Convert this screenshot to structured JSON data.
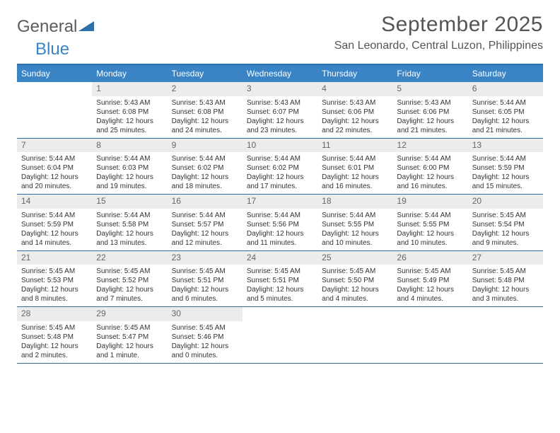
{
  "logo": {
    "word1": "General",
    "word2": "Blue"
  },
  "title": "September 2025",
  "location": "San Leonardo, Central Luzon, Philippines",
  "colors": {
    "header_bg": "#3a84c6",
    "header_border": "#2f6fa7",
    "daynum_bg": "#ececec",
    "text": "#333333",
    "logo_gray": "#5c5c5c",
    "logo_blue": "#3a84c6"
  },
  "dayNames": [
    "Sunday",
    "Monday",
    "Tuesday",
    "Wednesday",
    "Thursday",
    "Friday",
    "Saturday"
  ],
  "weeks": [
    [
      null,
      {
        "n": "1",
        "sr": "Sunrise: 5:43 AM",
        "ss": "Sunset: 6:08 PM",
        "dl": "Daylight: 12 hours and 25 minutes."
      },
      {
        "n": "2",
        "sr": "Sunrise: 5:43 AM",
        "ss": "Sunset: 6:08 PM",
        "dl": "Daylight: 12 hours and 24 minutes."
      },
      {
        "n": "3",
        "sr": "Sunrise: 5:43 AM",
        "ss": "Sunset: 6:07 PM",
        "dl": "Daylight: 12 hours and 23 minutes."
      },
      {
        "n": "4",
        "sr": "Sunrise: 5:43 AM",
        "ss": "Sunset: 6:06 PM",
        "dl": "Daylight: 12 hours and 22 minutes."
      },
      {
        "n": "5",
        "sr": "Sunrise: 5:43 AM",
        "ss": "Sunset: 6:06 PM",
        "dl": "Daylight: 12 hours and 21 minutes."
      },
      {
        "n": "6",
        "sr": "Sunrise: 5:44 AM",
        "ss": "Sunset: 6:05 PM",
        "dl": "Daylight: 12 hours and 21 minutes."
      }
    ],
    [
      {
        "n": "7",
        "sr": "Sunrise: 5:44 AM",
        "ss": "Sunset: 6:04 PM",
        "dl": "Daylight: 12 hours and 20 minutes."
      },
      {
        "n": "8",
        "sr": "Sunrise: 5:44 AM",
        "ss": "Sunset: 6:03 PM",
        "dl": "Daylight: 12 hours and 19 minutes."
      },
      {
        "n": "9",
        "sr": "Sunrise: 5:44 AM",
        "ss": "Sunset: 6:02 PM",
        "dl": "Daylight: 12 hours and 18 minutes."
      },
      {
        "n": "10",
        "sr": "Sunrise: 5:44 AM",
        "ss": "Sunset: 6:02 PM",
        "dl": "Daylight: 12 hours and 17 minutes."
      },
      {
        "n": "11",
        "sr": "Sunrise: 5:44 AM",
        "ss": "Sunset: 6:01 PM",
        "dl": "Daylight: 12 hours and 16 minutes."
      },
      {
        "n": "12",
        "sr": "Sunrise: 5:44 AM",
        "ss": "Sunset: 6:00 PM",
        "dl": "Daylight: 12 hours and 16 minutes."
      },
      {
        "n": "13",
        "sr": "Sunrise: 5:44 AM",
        "ss": "Sunset: 5:59 PM",
        "dl": "Daylight: 12 hours and 15 minutes."
      }
    ],
    [
      {
        "n": "14",
        "sr": "Sunrise: 5:44 AM",
        "ss": "Sunset: 5:59 PM",
        "dl": "Daylight: 12 hours and 14 minutes."
      },
      {
        "n": "15",
        "sr": "Sunrise: 5:44 AM",
        "ss": "Sunset: 5:58 PM",
        "dl": "Daylight: 12 hours and 13 minutes."
      },
      {
        "n": "16",
        "sr": "Sunrise: 5:44 AM",
        "ss": "Sunset: 5:57 PM",
        "dl": "Daylight: 12 hours and 12 minutes."
      },
      {
        "n": "17",
        "sr": "Sunrise: 5:44 AM",
        "ss": "Sunset: 5:56 PM",
        "dl": "Daylight: 12 hours and 11 minutes."
      },
      {
        "n": "18",
        "sr": "Sunrise: 5:44 AM",
        "ss": "Sunset: 5:55 PM",
        "dl": "Daylight: 12 hours and 10 minutes."
      },
      {
        "n": "19",
        "sr": "Sunrise: 5:44 AM",
        "ss": "Sunset: 5:55 PM",
        "dl": "Daylight: 12 hours and 10 minutes."
      },
      {
        "n": "20",
        "sr": "Sunrise: 5:45 AM",
        "ss": "Sunset: 5:54 PM",
        "dl": "Daylight: 12 hours and 9 minutes."
      }
    ],
    [
      {
        "n": "21",
        "sr": "Sunrise: 5:45 AM",
        "ss": "Sunset: 5:53 PM",
        "dl": "Daylight: 12 hours and 8 minutes."
      },
      {
        "n": "22",
        "sr": "Sunrise: 5:45 AM",
        "ss": "Sunset: 5:52 PM",
        "dl": "Daylight: 12 hours and 7 minutes."
      },
      {
        "n": "23",
        "sr": "Sunrise: 5:45 AM",
        "ss": "Sunset: 5:51 PM",
        "dl": "Daylight: 12 hours and 6 minutes."
      },
      {
        "n": "24",
        "sr": "Sunrise: 5:45 AM",
        "ss": "Sunset: 5:51 PM",
        "dl": "Daylight: 12 hours and 5 minutes."
      },
      {
        "n": "25",
        "sr": "Sunrise: 5:45 AM",
        "ss": "Sunset: 5:50 PM",
        "dl": "Daylight: 12 hours and 4 minutes."
      },
      {
        "n": "26",
        "sr": "Sunrise: 5:45 AM",
        "ss": "Sunset: 5:49 PM",
        "dl": "Daylight: 12 hours and 4 minutes."
      },
      {
        "n": "27",
        "sr": "Sunrise: 5:45 AM",
        "ss": "Sunset: 5:48 PM",
        "dl": "Daylight: 12 hours and 3 minutes."
      }
    ],
    [
      {
        "n": "28",
        "sr": "Sunrise: 5:45 AM",
        "ss": "Sunset: 5:48 PM",
        "dl": "Daylight: 12 hours and 2 minutes."
      },
      {
        "n": "29",
        "sr": "Sunrise: 5:45 AM",
        "ss": "Sunset: 5:47 PM",
        "dl": "Daylight: 12 hours and 1 minute."
      },
      {
        "n": "30",
        "sr": "Sunrise: 5:45 AM",
        "ss": "Sunset: 5:46 PM",
        "dl": "Daylight: 12 hours and 0 minutes."
      },
      null,
      null,
      null,
      null
    ]
  ]
}
